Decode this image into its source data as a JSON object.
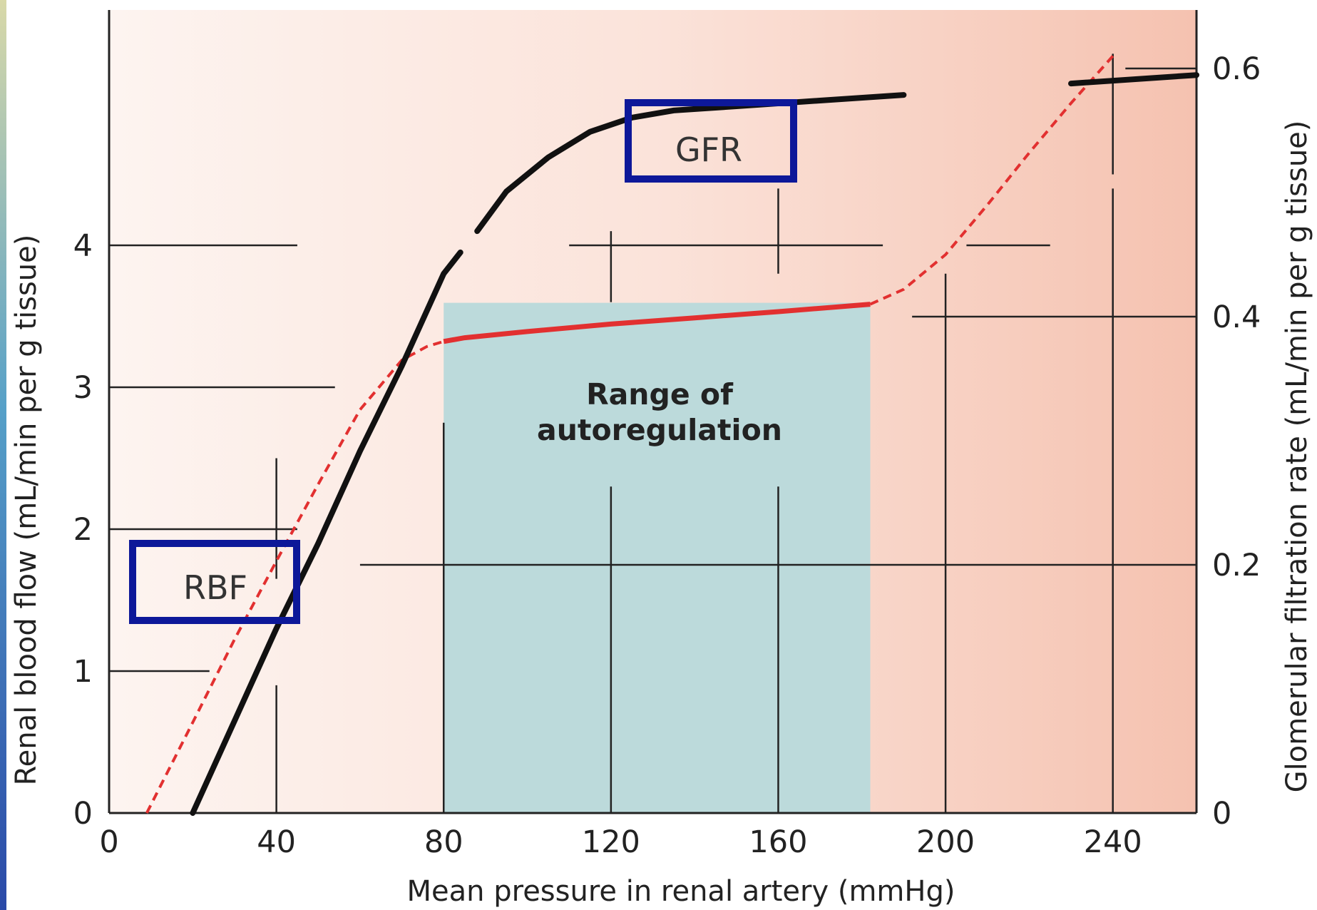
{
  "chart_data": {
    "type": "line",
    "xlabel": "Mean pressure in renal artery (mmHg)",
    "ylabel_left": "Renal blood flow (mL/min per g tissue)",
    "ylabel_right": "Glomerular filtration rate (mL/min per g tissue)",
    "xlim": [
      0,
      260
    ],
    "ylim_left": [
      0,
      5.6
    ],
    "ylim_right": [
      0,
      0.63
    ],
    "x_ticks": [
      0,
      40,
      80,
      120,
      160,
      200,
      240
    ],
    "y_ticks_left": [
      0,
      1,
      2,
      3,
      4
    ],
    "y_ticks_right": [
      0,
      0.2,
      0.4,
      0.6
    ],
    "legend": "none",
    "grid": true,
    "highlight_region": {
      "label_line1": "Range of",
      "label_line2": "autoregulation",
      "x_range": [
        80,
        182
      ],
      "color": "#bcdadb"
    },
    "series": [
      {
        "name": "RBF",
        "axis": "left",
        "color": "#111111",
        "style": "solid-black",
        "x": [
          20,
          30,
          40,
          50,
          60,
          70,
          80,
          84,
          88,
          95,
          105,
          115,
          125,
          135,
          150,
          170,
          190,
          210,
          230,
          260
        ],
        "y": [
          0,
          0.65,
          1.3,
          1.9,
          2.55,
          3.15,
          3.8,
          3.95,
          4.1,
          4.38,
          4.62,
          4.8,
          4.9,
          4.95,
          4.98,
          5.02,
          5.06,
          5.1,
          5.14,
          5.2
        ]
      },
      {
        "name": "GFR",
        "axis": "right",
        "color": "#e23030",
        "style": "dashed-outside-solid-inside",
        "x": [
          9,
          20,
          30,
          40,
          50,
          60,
          70,
          76,
          80,
          85,
          100,
          120,
          140,
          160,
          182,
          190,
          200,
          210,
          220,
          230,
          240
        ],
        "y": [
          0.0,
          0.073,
          0.14,
          0.203,
          0.265,
          0.325,
          0.365,
          0.376,
          0.38,
          0.383,
          0.388,
          0.394,
          0.399,
          0.404,
          0.41,
          0.422,
          0.45,
          0.49,
          0.532,
          0.572,
          0.61
        ]
      }
    ],
    "annotations": [
      {
        "text": "GFR",
        "style": "blue-box"
      },
      {
        "text": "RBF",
        "style": "blue-box"
      }
    ],
    "colors": {
      "background_left": "#fdeee8",
      "background_right": "#f5c0ad",
      "highlight": "#bcdadb",
      "box": "#0d1899",
      "frame_left": "#3a5db8"
    }
  }
}
